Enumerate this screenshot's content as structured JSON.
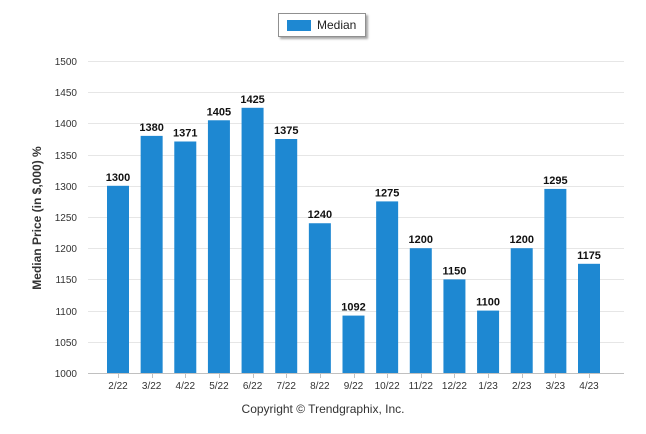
{
  "chart_data": {
    "type": "bar",
    "title": "",
    "xlabel": "",
    "ylabel": "Median Price (in $,000) %",
    "ylim": [
      1000,
      1500
    ],
    "yticks": [
      1000,
      1050,
      1100,
      1150,
      1200,
      1250,
      1300,
      1350,
      1400,
      1450,
      1500
    ],
    "grid": true,
    "legend_position": "top-center",
    "categories": [
      "2/22",
      "3/22",
      "4/22",
      "5/22",
      "6/22",
      "7/22",
      "8/22",
      "9/22",
      "10/22",
      "11/22",
      "12/22",
      "1/23",
      "2/23",
      "3/23",
      "4/23"
    ],
    "series": [
      {
        "name": "Median",
        "color": "#1e88d2",
        "values": [
          1300,
          1380,
          1371,
          1405,
          1425,
          1375,
          1240,
          1092,
          1275,
          1200,
          1150,
          1100,
          1200,
          1295,
          1175
        ]
      }
    ]
  },
  "footer": {
    "copyright": "Copyright © Trendgraphix, Inc."
  }
}
